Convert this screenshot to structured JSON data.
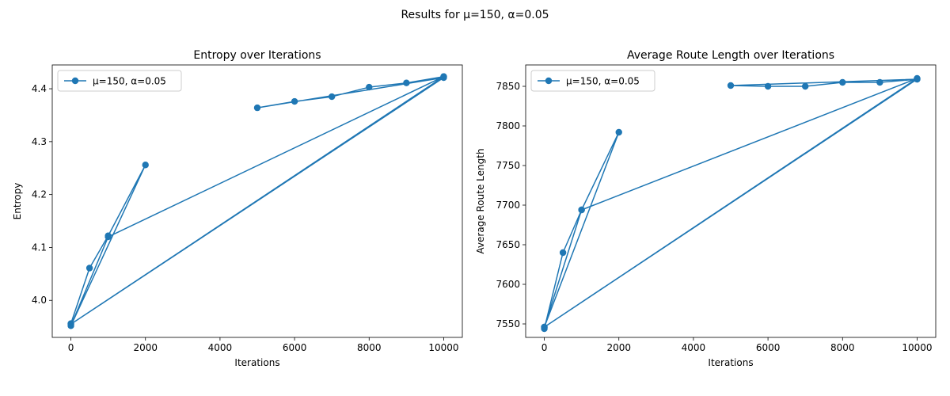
{
  "suptitle": "Results for μ=150, α=0.05",
  "chart_data": [
    {
      "type": "line",
      "title": "Entropy over Iterations",
      "xlabel": "Iterations",
      "ylabel": "Entropy",
      "xlim": [
        -500,
        10500
      ],
      "ylim": [
        3.93,
        4.445
      ],
      "xticks": [
        0,
        2000,
        4000,
        6000,
        8000,
        10000
      ],
      "yticks": [
        4.0,
        4.1,
        4.2,
        4.3,
        4.4
      ],
      "xtick_labels": [
        "0",
        "2000",
        "4000",
        "6000",
        "8000",
        "10000"
      ],
      "ytick_labels": [
        "4.0",
        "4.1",
        "4.2",
        "4.3",
        "4.4"
      ],
      "grid": false,
      "legend_position": "upper-left",
      "series": [
        {
          "name": "μ=150, α=0.05",
          "color": "#1f77b4",
          "marker": "circle",
          "x": [
            0,
            500,
            1000,
            2000,
            0,
            1000,
            10000,
            0,
            10000,
            5000,
            6000,
            7000,
            8000,
            9000,
            10000
          ],
          "y": [
            3.956,
            4.061,
            4.122,
            4.256,
            3.952,
            4.12,
            4.423,
            3.955,
            4.421,
            4.364,
            4.376,
            4.385,
            4.403,
            4.411,
            4.423
          ]
        }
      ]
    },
    {
      "type": "line",
      "title": "Average Route Length over Iterations",
      "xlabel": "Iterations",
      "ylabel": "Average Route Length",
      "xlim": [
        -500,
        10500
      ],
      "ylim": [
        7533,
        7877
      ],
      "xticks": [
        0,
        2000,
        4000,
        6000,
        8000,
        10000
      ],
      "yticks": [
        7550,
        7600,
        7650,
        7700,
        7750,
        7800,
        7850
      ],
      "xtick_labels": [
        "0",
        "2000",
        "4000",
        "6000",
        "8000",
        "10000"
      ],
      "ytick_labels": [
        "7550",
        "7600",
        "7650",
        "7700",
        "7750",
        "7800",
        "7850"
      ],
      "grid": false,
      "legend_position": "upper-left",
      "series": [
        {
          "name": "μ=150, α=0.05",
          "color": "#1f77b4",
          "marker": "circle",
          "x": [
            0,
            500,
            1000,
            2000,
            0,
            1000,
            10000,
            0,
            10000,
            5000,
            6000,
            7000,
            8000,
            9000,
            10000
          ],
          "y": [
            7544,
            7640,
            7694,
            7792,
            7546,
            7694,
            7860,
            7546,
            7859,
            7851,
            7850,
            7850,
            7855,
            7855,
            7859
          ]
        }
      ]
    }
  ]
}
